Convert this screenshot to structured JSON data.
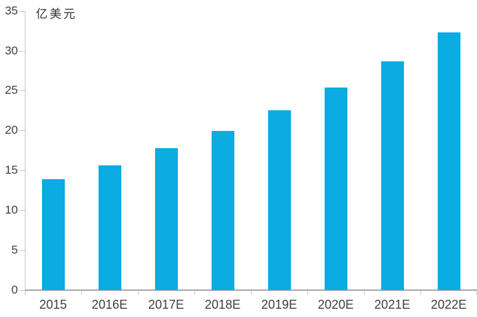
{
  "chart_data": {
    "type": "bar",
    "title": "",
    "ylabel": "亿美元",
    "xlabel": "",
    "categories": [
      "2015",
      "2016E",
      "2017E",
      "2018E",
      "2019E",
      "2020E",
      "2021E",
      "2022E"
    ],
    "values": [
      13.9,
      15.6,
      17.8,
      19.9,
      22.5,
      25.4,
      28.7,
      32.3
    ],
    "ylim": [
      0,
      35
    ],
    "ytick_step": 5,
    "yticks": [
      0,
      5,
      10,
      15,
      20,
      25,
      30,
      35
    ],
    "grid": false,
    "legend_position": "none",
    "colors": {
      "bar": "#0aace2",
      "axis_line": "#c9c9c9",
      "baseline": "#a9a9a9",
      "tick_text": "#3f3f3f",
      "ylabel_text": "#333333",
      "background": "#ffffff"
    }
  }
}
